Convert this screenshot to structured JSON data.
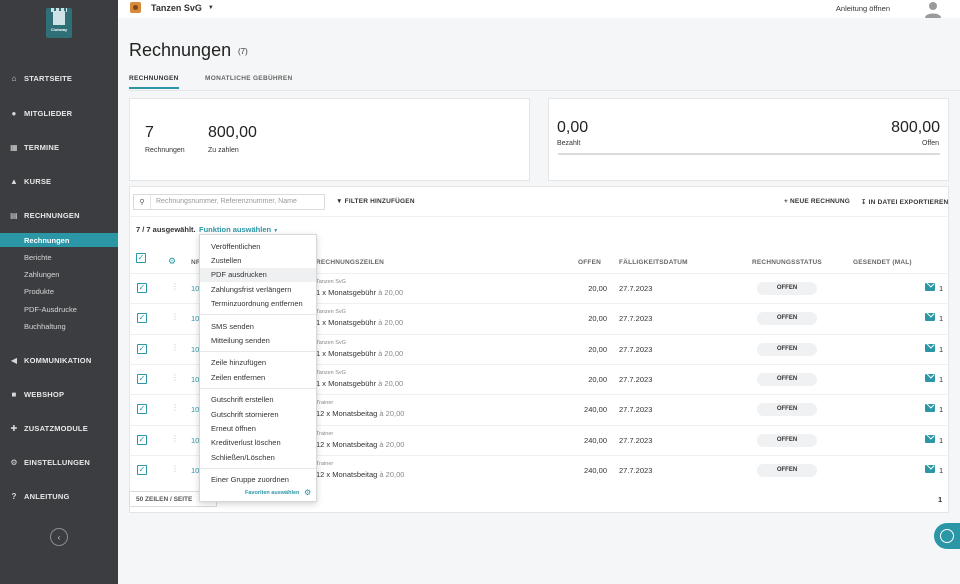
{
  "colors": {
    "accent": "#2a96a6",
    "sidebar": "#3b3d40"
  },
  "brand": {
    "logo_text": "Clubway"
  },
  "sidebar": {
    "items": [
      {
        "label": "STARTSEITE",
        "icon": "home-icon"
      },
      {
        "label": "MITGLIEDER",
        "icon": "user-icon"
      },
      {
        "label": "TERMINE",
        "icon": "calendar-icon"
      },
      {
        "label": "KURSE",
        "icon": "graduation-cap-icon"
      },
      {
        "label": "RECHNUNGEN",
        "icon": "invoice-icon"
      },
      {
        "label": "KOMMUNIKATION",
        "icon": "megaphone-icon"
      },
      {
        "label": "WEBSHOP",
        "icon": "truck-icon"
      },
      {
        "label": "ZUSATZMODULE",
        "icon": "puzzle-icon"
      },
      {
        "label": "EINSTELLUNGEN",
        "icon": "gear-icon"
      },
      {
        "label": "ANLEITUNG",
        "icon": "question-icon"
      }
    ],
    "sub_items": [
      "Rechnungen",
      "Berichte",
      "Zahlungen",
      "Produkte",
      "PDF-Ausdrucke",
      "Buchhaltung"
    ]
  },
  "topbar": {
    "club_name": "Tanzen SvG",
    "guide": "Anleitung öffnen"
  },
  "page": {
    "title": "Rechnungen",
    "count": "(7)"
  },
  "tabs": [
    "RECHNUNGEN",
    "MONATLICHE GEBÜHREN"
  ],
  "summary_left": {
    "count": "7",
    "count_label": "Rechnungen",
    "amount": "800,00",
    "amount_label": "Zu zahlen"
  },
  "summary_right": {
    "paid": "0,00",
    "paid_label": "Bezahlt",
    "open": "800,00",
    "open_label": "Offen",
    "paid_fraction": 0
  },
  "toolbar": {
    "search_placeholder": "Rechnungsnummer, Referenznummer, Name",
    "filter": "FILTER HINZUFÜGEN",
    "new_invoice": "NEUE RECHNUNG",
    "export": "IN DATEI EXPORTIEREN"
  },
  "selection": {
    "info": "7 / 7 ausgewählt.",
    "function_link": "Funktion auswählen"
  },
  "columns": {
    "nr": "NR",
    "lines": "RECHNUNGSZEILEN",
    "open": "OFFEN",
    "due": "FÄLLIGKEITSDATUM",
    "status": "RECHNUNGSSTATUS",
    "sent": "GESENDET (MAL)"
  },
  "rows": [
    {
      "nr": "10",
      "line_top": "Tanzen SvG",
      "line": "1 x Monatsgebühr",
      "each": "à 20,00",
      "open": "20,00",
      "due": "27.7.2023",
      "status": "OFFEN",
      "sent": "1"
    },
    {
      "nr": "10",
      "line_top": "Tanzen SvG",
      "line": "1 x Monatsgebühr",
      "each": "à 20,00",
      "open": "20,00",
      "due": "27.7.2023",
      "status": "OFFEN",
      "sent": "1"
    },
    {
      "nr": "10",
      "line_top": "Tanzen SvG",
      "line": "1 x Monatsgebühr",
      "each": "à 20,00",
      "open": "20,00",
      "due": "27.7.2023",
      "status": "OFFEN",
      "sent": "1"
    },
    {
      "nr": "10",
      "line_top": "Tanzen SvG",
      "line": "1 x Monatsgebühr",
      "each": "à 20,00",
      "open": "20,00",
      "due": "27.7.2023",
      "status": "OFFEN",
      "sent": "1"
    },
    {
      "nr": "10",
      "line_top": "Trainer",
      "line": "12 x Monatsbeitag",
      "each": "à 20,00",
      "open": "240,00",
      "due": "27.7.2023",
      "status": "OFFEN",
      "sent": "1"
    },
    {
      "nr": "10",
      "line_top": "Trainer",
      "line": "12 x Monatsbeitag",
      "each": "à 20,00",
      "open": "240,00",
      "due": "27.7.2023",
      "status": "OFFEN",
      "sent": "1"
    },
    {
      "nr": "10",
      "line_top": "Trainer",
      "line": "12 x Monatsbeitag",
      "each": "à 20,00",
      "open": "240,00",
      "due": "27.7.2023",
      "status": "OFFEN",
      "sent": "1"
    }
  ],
  "pager": {
    "per_page": "50 ZEILEN / SEITE",
    "page": "1"
  },
  "dropdown": {
    "groups": [
      [
        "Veröffentlichen",
        "Zustellen",
        "PDF ausdrucken",
        "Zahlungsfrist verlängern",
        "Terminzuordnung entfernen"
      ],
      [
        "SMS senden",
        "Mitteilung senden"
      ],
      [
        "Zeile hinzufügen",
        "Zeilen entfernen"
      ],
      [
        "Gutschrift erstellen",
        "Gutschrift stornieren",
        "Erneut öffnen",
        "Kreditverlust löschen",
        "Schließen/Löschen"
      ],
      [
        "Einer Gruppe zuordnen"
      ]
    ],
    "highlighted": "PDF ausdrucken",
    "favorites": "Favoriten auswählen"
  }
}
